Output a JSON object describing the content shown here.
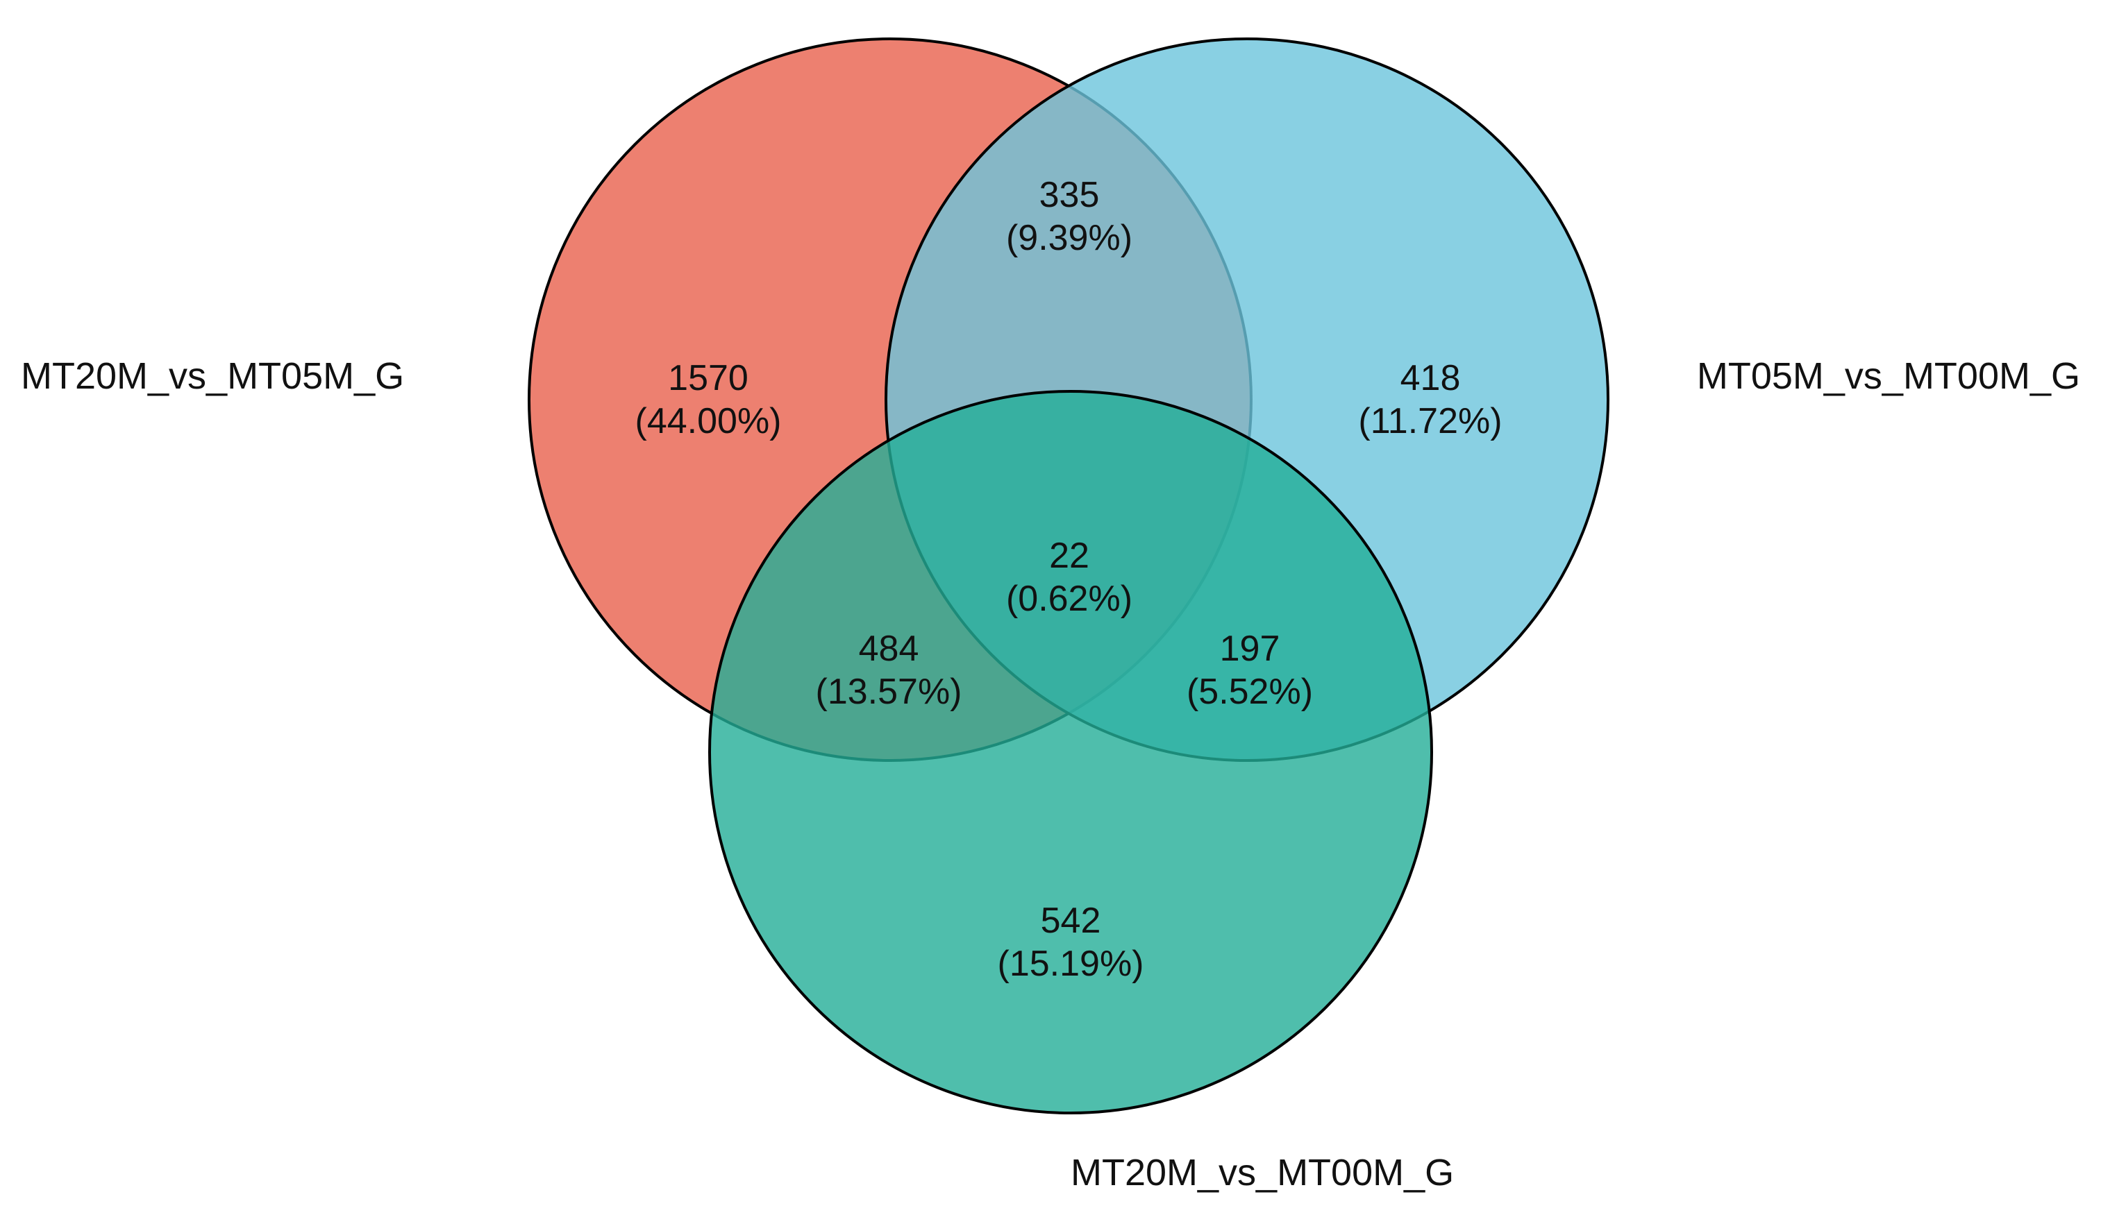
{
  "venn": {
    "sets": [
      {
        "id": "a",
        "label": "MT20M_vs_MT05M_G",
        "color": "#E8604C"
      },
      {
        "id": "b",
        "label": "MT05M_vs_MT00M_G",
        "color": "#6CC4DC"
      },
      {
        "id": "c",
        "label": "MT20M_vs_MT00M_G",
        "color": "#23AE97"
      }
    ],
    "regions": {
      "a_only": {
        "count": "1570",
        "percent": "(44.00%)"
      },
      "b_only": {
        "count": "418",
        "percent": "(11.72%)"
      },
      "c_only": {
        "count": "542",
        "percent": "(15.19%)"
      },
      "ab": {
        "count": "335",
        "percent": "(9.39%)"
      },
      "ac": {
        "count": "484",
        "percent": "(13.57%)"
      },
      "bc": {
        "count": "197",
        "percent": "(5.52%)"
      },
      "abc": {
        "count": "22",
        "percent": "(0.62%)"
      }
    }
  }
}
